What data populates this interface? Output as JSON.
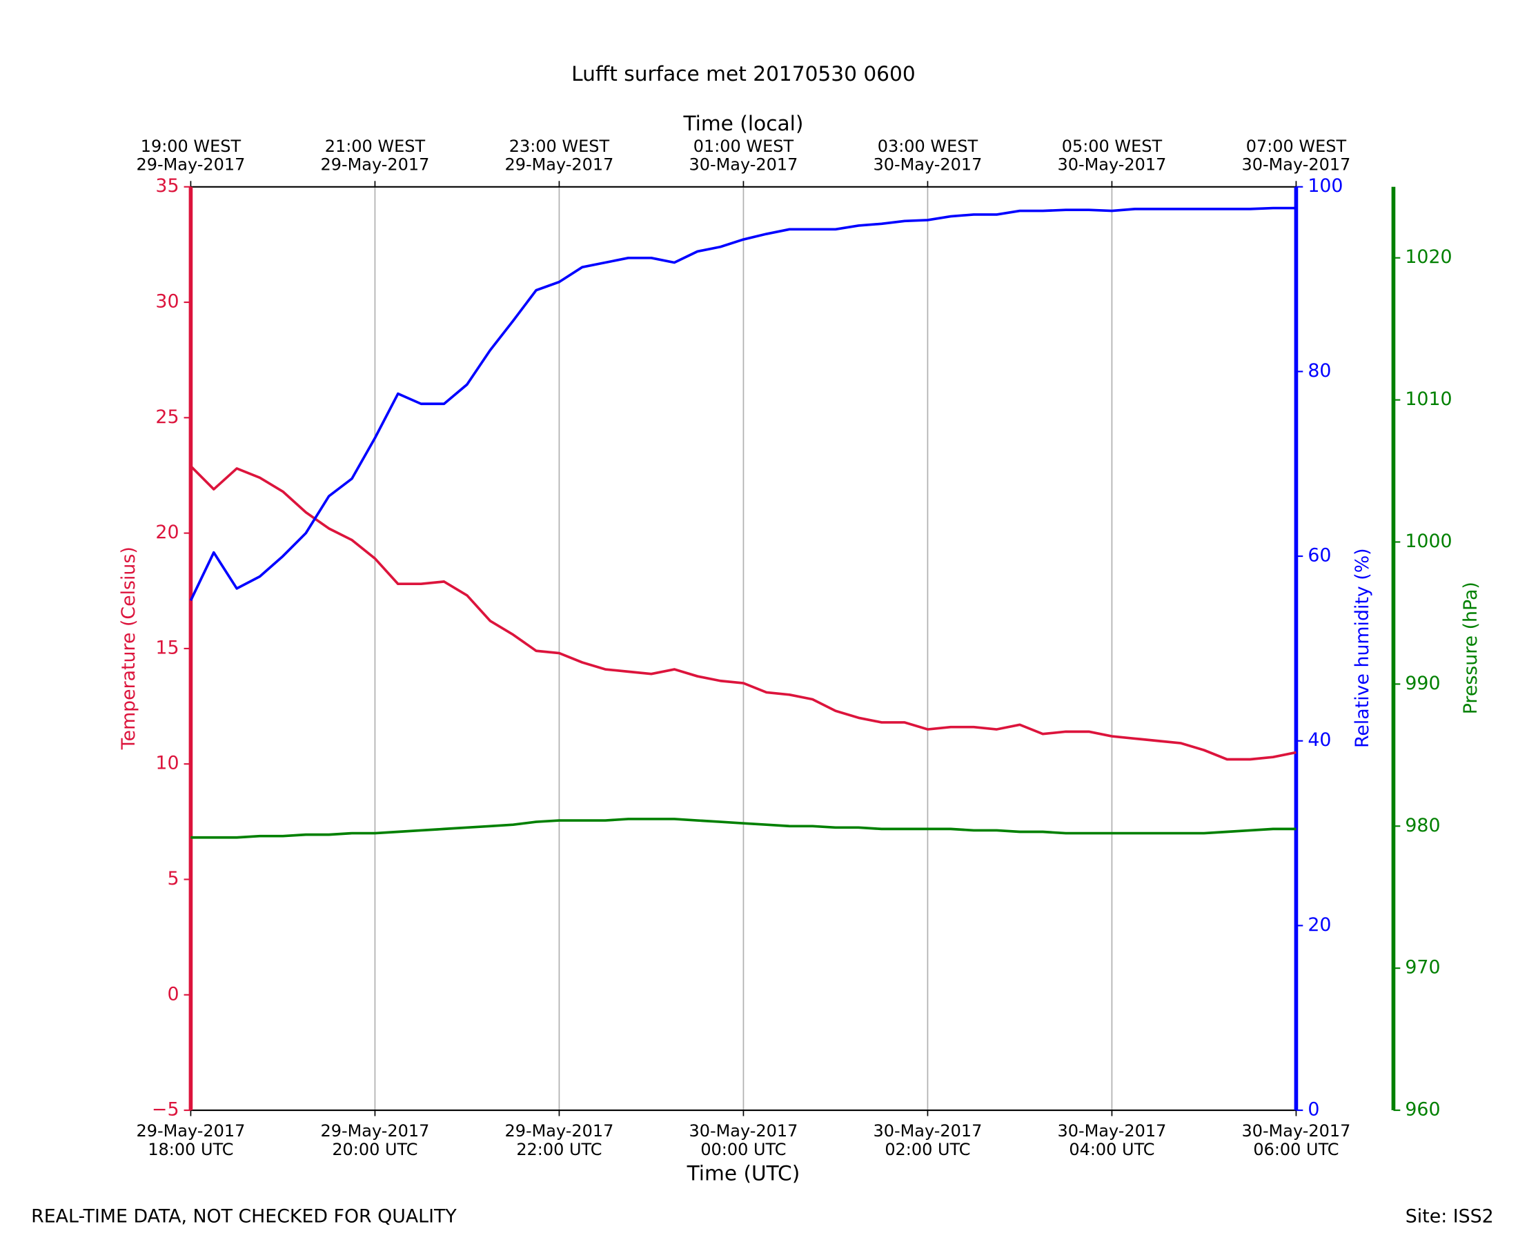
{
  "chart_data": {
    "type": "line",
    "title": "Lufft surface met 20170530 0600",
    "xlabel": "Time (UTC)",
    "x2label": "Time (local)",
    "ylabel": "Temperature (Celsius)",
    "y2label": "Relative humidity (%)",
    "y3label": "Pressure (hPa)",
    "annotations": [
      "REAL-TIME DATA, NOT CHECKED FOR QUALITY",
      "Site: ISS2"
    ],
    "grid": true,
    "xlim": [
      "2017-05-29T18:00",
      "2017-05-30T06:00"
    ],
    "xticks": [
      {
        "value": "2017-05-29T18:00",
        "label": [
          "29-May-2017",
          "18:00 UTC"
        ]
      },
      {
        "value": "2017-05-29T20:00",
        "label": [
          "29-May-2017",
          "20:00 UTC"
        ]
      },
      {
        "value": "2017-05-29T22:00",
        "label": [
          "29-May-2017",
          "22:00 UTC"
        ]
      },
      {
        "value": "2017-05-30T00:00",
        "label": [
          "30-May-2017",
          "00:00 UTC"
        ]
      },
      {
        "value": "2017-05-30T02:00",
        "label": [
          "30-May-2017",
          "02:00 UTC"
        ]
      },
      {
        "value": "2017-05-30T04:00",
        "label": [
          "30-May-2017",
          "04:00 UTC"
        ]
      },
      {
        "value": "2017-05-30T06:00",
        "label": [
          "30-May-2017",
          "06:00 UTC"
        ]
      }
    ],
    "x2ticks": [
      {
        "value": "2017-05-29T18:00",
        "label": [
          "19:00 WEST",
          "29-May-2017"
        ]
      },
      {
        "value": "2017-05-29T20:00",
        "label": [
          "21:00 WEST",
          "29-May-2017"
        ]
      },
      {
        "value": "2017-05-29T22:00",
        "label": [
          "23:00 WEST",
          "29-May-2017"
        ]
      },
      {
        "value": "2017-05-30T00:00",
        "label": [
          "01:00 WEST",
          "30-May-2017"
        ]
      },
      {
        "value": "2017-05-30T02:00",
        "label": [
          "03:00 WEST",
          "30-May-2017"
        ]
      },
      {
        "value": "2017-05-30T04:00",
        "label": [
          "05:00 WEST",
          "30-May-2017"
        ]
      },
      {
        "value": "2017-05-30T06:00",
        "label": [
          "07:00 WEST",
          "30-May-2017"
        ]
      }
    ],
    "ylim": [
      -5,
      35
    ],
    "yticks": [
      {
        "value": -5,
        "label": "−5"
      },
      0,
      5,
      10,
      15,
      20,
      25,
      30,
      35
    ],
    "y2lim": [
      0,
      100
    ],
    "y2ticks": [
      0,
      20,
      40,
      60,
      80,
      100
    ],
    "y3lim": [
      960,
      1025
    ],
    "y3ticks": [
      960,
      970,
      980,
      990,
      1000,
      1010,
      1020
    ],
    "x": [
      "2017-05-29T18:00",
      "2017-05-29T18:15",
      "2017-05-29T18:30",
      "2017-05-29T18:45",
      "2017-05-29T19:00",
      "2017-05-29T19:15",
      "2017-05-29T19:30",
      "2017-05-29T19:45",
      "2017-05-29T20:00",
      "2017-05-29T20:15",
      "2017-05-29T20:30",
      "2017-05-29T20:45",
      "2017-05-29T21:00",
      "2017-05-29T21:15",
      "2017-05-29T21:30",
      "2017-05-29T21:45",
      "2017-05-29T22:00",
      "2017-05-29T22:15",
      "2017-05-29T22:30",
      "2017-05-29T22:45",
      "2017-05-29T23:00",
      "2017-05-29T23:15",
      "2017-05-29T23:30",
      "2017-05-29T23:45",
      "2017-05-30T00:00",
      "2017-05-30T00:15",
      "2017-05-30T00:30",
      "2017-05-30T00:45",
      "2017-05-30T01:00",
      "2017-05-30T01:15",
      "2017-05-30T01:30",
      "2017-05-30T01:45",
      "2017-05-30T02:00",
      "2017-05-30T02:15",
      "2017-05-30T02:30",
      "2017-05-30T02:45",
      "2017-05-30T03:00",
      "2017-05-30T03:15",
      "2017-05-30T03:30",
      "2017-05-30T03:45",
      "2017-05-30T04:00",
      "2017-05-30T04:15",
      "2017-05-30T04:30",
      "2017-05-30T04:45",
      "2017-05-30T05:00",
      "2017-05-30T05:15",
      "2017-05-30T05:30",
      "2017-05-30T05:45",
      "2017-05-30T06:00"
    ],
    "series": [
      {
        "name": "Temperature",
        "color": "#dc143c",
        "axis": "y",
        "values": [
          22.9,
          21.9,
          22.8,
          22.4,
          21.8,
          20.9,
          20.2,
          19.7,
          18.9,
          17.8,
          17.8,
          17.9,
          17.3,
          16.2,
          15.6,
          14.9,
          14.8,
          14.4,
          14.1,
          14.0,
          13.9,
          14.1,
          13.8,
          13.6,
          13.5,
          13.1,
          13.0,
          12.8,
          12.3,
          12.0,
          11.8,
          11.8,
          11.5,
          11.6,
          11.6,
          11.5,
          11.7,
          11.3,
          11.4,
          11.4,
          11.2,
          11.1,
          11.0,
          10.9,
          10.6,
          10.2,
          10.2,
          10.3,
          10.5
        ]
      },
      {
        "name": "Relative humidity",
        "color": "#0000ff",
        "axis": "y2",
        "values": [
          55.2,
          60.4,
          56.5,
          57.8,
          60.0,
          62.5,
          66.5,
          68.4,
          72.8,
          77.6,
          76.5,
          76.5,
          78.6,
          82.3,
          85.5,
          88.8,
          89.7,
          91.3,
          91.8,
          92.3,
          92.3,
          91.8,
          93.0,
          93.5,
          94.3,
          94.9,
          95.4,
          95.4,
          95.4,
          95.8,
          96.0,
          96.3,
          96.4,
          96.8,
          97.0,
          97.0,
          97.4,
          97.4,
          97.5,
          97.5,
          97.4,
          97.6,
          97.6,
          97.6,
          97.6,
          97.6,
          97.6,
          97.7,
          97.7
        ]
      },
      {
        "name": "Pressure",
        "color": "#008000",
        "axis": "y3",
        "values": [
          979.2,
          979.2,
          979.2,
          979.3,
          979.3,
          979.4,
          979.4,
          979.5,
          979.5,
          979.6,
          979.7,
          979.8,
          979.9,
          980.0,
          980.1,
          980.3,
          980.4,
          980.4,
          980.4,
          980.5,
          980.5,
          980.5,
          980.4,
          980.3,
          980.2,
          980.1,
          980.0,
          980.0,
          979.9,
          979.9,
          979.8,
          979.8,
          979.8,
          979.8,
          979.7,
          979.7,
          979.6,
          979.6,
          979.5,
          979.5,
          979.5,
          979.5,
          979.5,
          979.5,
          979.5,
          979.6,
          979.7,
          979.8,
          979.8
        ]
      }
    ]
  }
}
